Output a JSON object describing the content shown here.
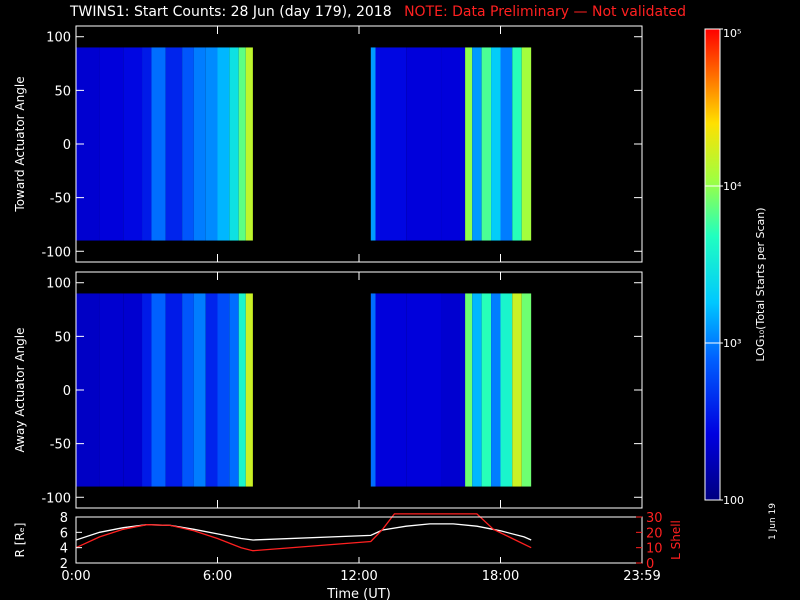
{
  "title": {
    "main": "TWINS1: Start Counts: 28 Jun (day 179), 2018",
    "note": "NOTE: Data Preliminary — Not validated"
  },
  "date_stamp": "1 Jun 19",
  "colors": {
    "background": "#000000",
    "axes": "#ffffff",
    "note": "#ff2020",
    "r_line": "#ffffff",
    "lshell_line": "#ff2020"
  },
  "chart_data": [
    {
      "type": "heatmap",
      "ylabel": "Toward Actuator Angle",
      "ylim": [
        -110,
        110
      ],
      "yticks": [
        -100,
        -50,
        0,
        50,
        100
      ],
      "angle_range": [
        -90,
        90
      ],
      "x_unit": "hours UT",
      "xlim": [
        0,
        24
      ],
      "data_intervals": [
        [
          0,
          7.5
        ],
        [
          12.5,
          19.3
        ]
      ],
      "strips": [
        {
          "t": 0.0,
          "log_counts": 2.35
        },
        {
          "t": 1.0,
          "log_counts": 2.4
        },
        {
          "t": 2.0,
          "log_counts": 2.45
        },
        {
          "t": 2.8,
          "log_counts": 2.55
        },
        {
          "t": 3.2,
          "log_counts": 2.95
        },
        {
          "t": 3.8,
          "log_counts": 2.6
        },
        {
          "t": 4.5,
          "log_counts": 2.85
        },
        {
          "t": 5.0,
          "log_counts": 3.0
        },
        {
          "t": 5.5,
          "log_counts": 3.05
        },
        {
          "t": 6.0,
          "log_counts": 3.2
        },
        {
          "t": 6.5,
          "log_counts": 3.45
        },
        {
          "t": 6.9,
          "log_counts": 3.85
        },
        {
          "t": 7.2,
          "log_counts": 4.15
        },
        {
          "t": 12.5,
          "log_counts": 3.1
        },
        {
          "t": 12.7,
          "log_counts": 2.45
        },
        {
          "t": 14.0,
          "log_counts": 2.4
        },
        {
          "t": 15.5,
          "log_counts": 2.4
        },
        {
          "t": 16.5,
          "log_counts": 4.0
        },
        {
          "t": 16.8,
          "log_counts": 3.1
        },
        {
          "t": 17.2,
          "log_counts": 3.8
        },
        {
          "t": 17.6,
          "log_counts": 3.3
        },
        {
          "t": 18.0,
          "log_counts": 3.0
        },
        {
          "t": 18.5,
          "log_counts": 3.7
        },
        {
          "t": 18.9,
          "log_counts": 4.05
        }
      ]
    },
    {
      "type": "heatmap",
      "ylabel": "Away Actuator Angle",
      "ylim": [
        -110,
        110
      ],
      "yticks": [
        -100,
        -50,
        0,
        50,
        100
      ],
      "angle_range": [
        -90,
        90
      ],
      "x_unit": "hours UT",
      "xlim": [
        0,
        24
      ],
      "data_intervals": [
        [
          0,
          7.5
        ],
        [
          12.5,
          19.3
        ]
      ],
      "strips": [
        {
          "t": 0.0,
          "log_counts": 2.3
        },
        {
          "t": 1.0,
          "log_counts": 2.35
        },
        {
          "t": 2.0,
          "log_counts": 2.35
        },
        {
          "t": 2.8,
          "log_counts": 2.55
        },
        {
          "t": 3.2,
          "log_counts": 2.9
        },
        {
          "t": 3.8,
          "log_counts": 2.55
        },
        {
          "t": 4.5,
          "log_counts": 2.85
        },
        {
          "t": 5.0,
          "log_counts": 3.0
        },
        {
          "t": 5.5,
          "log_counts": 2.6
        },
        {
          "t": 6.0,
          "log_counts": 2.8
        },
        {
          "t": 6.5,
          "log_counts": 2.95
        },
        {
          "t": 6.9,
          "log_counts": 3.6
        },
        {
          "t": 7.2,
          "log_counts": 4.2
        },
        {
          "t": 12.5,
          "log_counts": 2.95
        },
        {
          "t": 12.7,
          "log_counts": 2.4
        },
        {
          "t": 14.0,
          "log_counts": 2.4
        },
        {
          "t": 15.5,
          "log_counts": 2.35
        },
        {
          "t": 16.5,
          "log_counts": 3.9
        },
        {
          "t": 16.8,
          "log_counts": 3.2
        },
        {
          "t": 17.2,
          "log_counts": 3.7
        },
        {
          "t": 17.6,
          "log_counts": 3.0
        },
        {
          "t": 18.0,
          "log_counts": 3.6
        },
        {
          "t": 18.5,
          "log_counts": 4.2
        },
        {
          "t": 18.9,
          "log_counts": 3.9
        }
      ]
    },
    {
      "type": "line",
      "ylabel": "R [Rₑ]",
      "ylim": [
        2,
        8
      ],
      "yticks": [
        2,
        4,
        6,
        8
      ],
      "y2label": "L Shell",
      "y2lim": [
        0,
        30
      ],
      "y2ticks": [
        0,
        10,
        20,
        30
      ],
      "xlabel": "Time (UT)",
      "xlim": [
        0,
        24
      ],
      "xticks": [
        0,
        6,
        12,
        18,
        24
      ],
      "xtick_labels": [
        "0:00",
        "6:00",
        "12:00",
        "18:00",
        "23:59"
      ],
      "series": [
        {
          "axis": "left",
          "x": [
            0,
            1,
            2,
            3,
            4,
            5,
            6,
            7,
            7.5,
            12.5,
            13,
            14,
            15,
            16,
            17,
            18,
            19,
            19.3
          ],
          "y": [
            5.0,
            6.0,
            6.6,
            7.0,
            6.9,
            6.4,
            5.8,
            5.2,
            5.0,
            5.6,
            6.3,
            6.8,
            7.1,
            7.1,
            6.8,
            6.2,
            5.4,
            5.0
          ]
        },
        {
          "axis": "right",
          "x": [
            0,
            1,
            2,
            3,
            4,
            5,
            6,
            7,
            7.5,
            12.5,
            13,
            13.5,
            17,
            17.7,
            18.5,
            19.3
          ],
          "y": [
            10,
            17,
            22,
            25,
            24.5,
            21,
            16,
            10,
            8,
            14,
            22,
            32,
            32,
            22,
            16,
            10
          ]
        }
      ]
    },
    {
      "type": "colorbar",
      "label": "LOG₁₀(Total Starts per Scan)",
      "range_log10": [
        2,
        5
      ],
      "tick_labels": [
        "100",
        "10³",
        "10⁴",
        "10⁵"
      ],
      "tick_values_log10": [
        2,
        3,
        4,
        5
      ]
    }
  ]
}
